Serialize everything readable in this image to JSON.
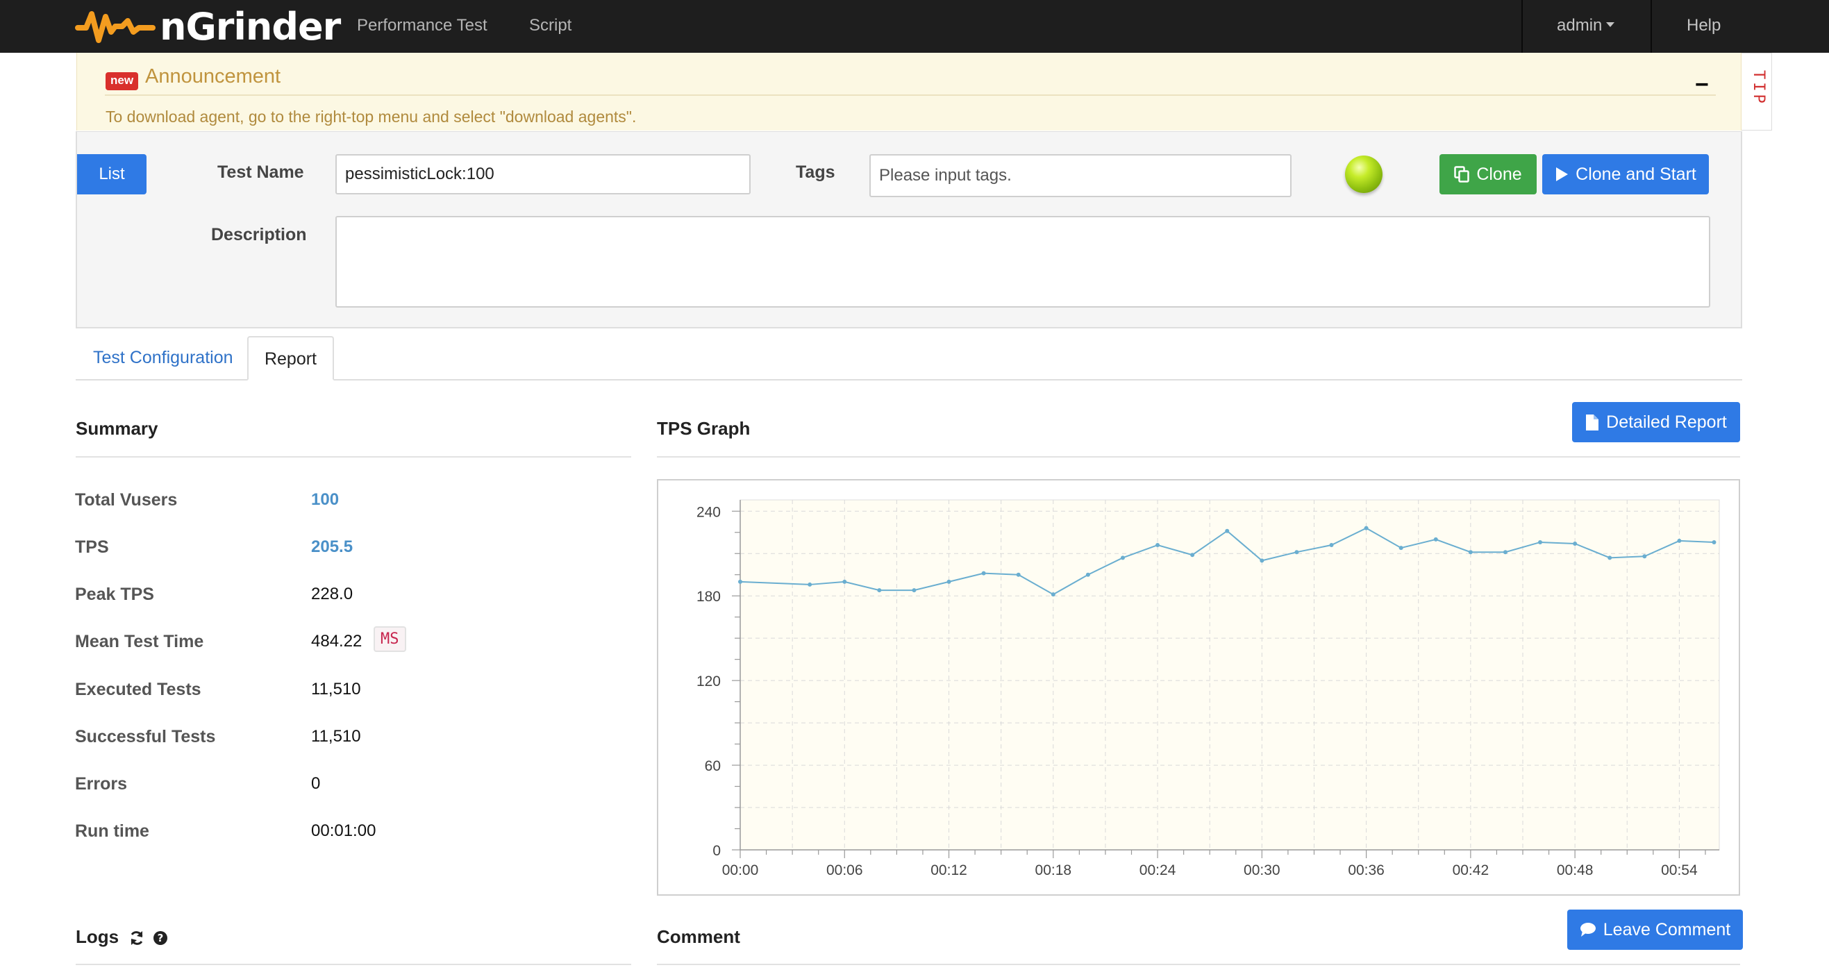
{
  "navbar": {
    "brand": "nGrinder",
    "links": [
      "Performance Test",
      "Script"
    ],
    "user": "admin",
    "help": "Help"
  },
  "announcement": {
    "badge": "new",
    "title": "Announcement",
    "text": "To download agent, go to the right-top menu and select \"download agents\".",
    "minimize": "−",
    "tip": "TIP"
  },
  "test": {
    "list_button": "List",
    "name_label": "Test Name",
    "name_value": "pessimisticLock:100",
    "tags_label": "Tags",
    "tags_placeholder": "Please input tags.",
    "description_label": "Description",
    "description_value": "",
    "clone_button": "Clone",
    "clone_start_button": "Clone and Start"
  },
  "tabs": {
    "config": "Test Configuration",
    "report": "Report"
  },
  "summary": {
    "title": "Summary",
    "rows": [
      {
        "label": "Total Vusers",
        "value": "100",
        "link": true
      },
      {
        "label": "TPS",
        "value": "205.5",
        "link": true
      },
      {
        "label": "Peak TPS",
        "value": "228.0",
        "link": false
      },
      {
        "label": "Mean Test Time",
        "value": "484.22",
        "unit": "MS",
        "link": false
      },
      {
        "label": "Executed Tests",
        "value": "11,510",
        "link": false
      },
      {
        "label": "Successful Tests",
        "value": "11,510",
        "link": false
      },
      {
        "label": "Errors",
        "value": "0",
        "link": false
      },
      {
        "label": "Run time",
        "value": "00:01:00",
        "link": false
      }
    ]
  },
  "graph": {
    "title": "TPS Graph",
    "detailed_report_button": "Detailed Report"
  },
  "logs": {
    "title": "Logs"
  },
  "comment": {
    "title": "Comment",
    "button": "Leave Comment"
  },
  "colors": {
    "primary": "#2f7ae5",
    "success": "#3fa548",
    "navbar": "#1e1e1e",
    "line": "#6aaed0"
  },
  "chart_data": {
    "type": "line",
    "title": "",
    "xlabel": "",
    "ylabel": "",
    "ylim": [
      0,
      248
    ],
    "yticks": [
      0,
      60,
      120,
      180,
      240
    ],
    "xtick_labels": [
      "00:00",
      "00:06",
      "00:12",
      "00:18",
      "00:24",
      "00:30",
      "00:36",
      "00:42",
      "00:48",
      "00:54"
    ],
    "x_seconds": [
      0,
      4,
      6,
      8,
      10,
      12,
      14,
      16,
      18,
      20,
      22,
      24,
      26,
      28,
      30,
      32,
      34,
      36,
      38,
      40,
      42,
      44,
      46,
      48,
      50,
      52,
      54,
      56
    ],
    "series": [
      {
        "values": [
          190,
          188,
          190,
          184,
          184,
          190,
          196,
          195,
          181,
          195,
          207,
          216,
          209,
          226,
          205,
          211,
          216,
          228,
          214,
          220,
          211,
          211,
          218,
          217,
          207,
          208,
          219,
          218
        ]
      }
    ],
    "grid": true
  }
}
